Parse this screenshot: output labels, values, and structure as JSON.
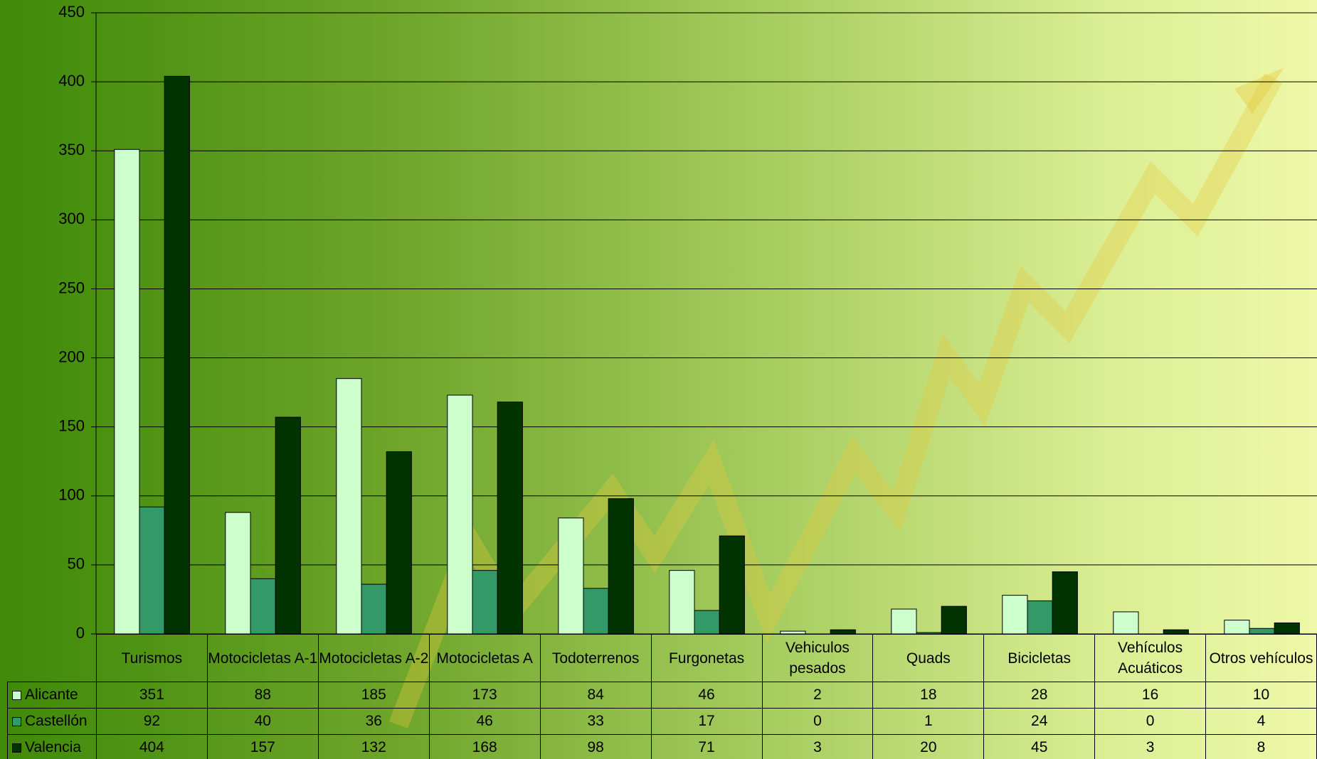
{
  "chart_data": {
    "type": "bar",
    "categories": [
      "Turismos",
      "Motocicletas A-1",
      "Motocicletas A-2",
      "Motocicletas A",
      "Todoterrenos",
      "Furgonetas",
      "Vehiculos pesados",
      "Quads",
      "Bicicletas",
      "Vehículos Acuáticos",
      "Otros vehículos"
    ],
    "series": [
      {
        "name": "Alicante",
        "color": "#ccffcc",
        "values": [
          351,
          88,
          185,
          173,
          84,
          46,
          2,
          18,
          28,
          16,
          10
        ]
      },
      {
        "name": "Castellón",
        "color": "#339966",
        "values": [
          92,
          40,
          36,
          46,
          33,
          17,
          0,
          1,
          24,
          0,
          4
        ]
      },
      {
        "name": "Valencia",
        "color": "#003300",
        "values": [
          404,
          157,
          132,
          168,
          98,
          71,
          3,
          20,
          45,
          3,
          8
        ]
      }
    ],
    "ylim": [
      0,
      450
    ],
    "yticks": [
      0,
      50,
      100,
      150,
      200,
      250,
      300,
      350,
      400,
      450
    ],
    "grid": true
  }
}
